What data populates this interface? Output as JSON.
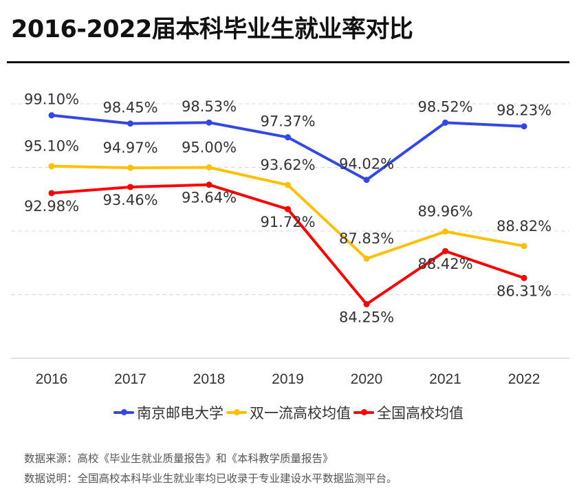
{
  "title": "2016-2022届本科毕业生就业率对比",
  "chart_data": {
    "type": "line",
    "title": "2016-2022届本科毕业生就业率对比",
    "categories": [
      "2016",
      "2017",
      "2018",
      "2019",
      "2020",
      "2021",
      "2022"
    ],
    "ylim": [
      80,
      100
    ],
    "grid": true,
    "legend_position": "bottom",
    "series": [
      {
        "name": "南京邮电大学",
        "color": "#3347e8",
        "values": [
          99.1,
          98.45,
          98.53,
          97.37,
          94.02,
          98.52,
          98.23
        ],
        "labels": [
          "99.10%",
          "98.45%",
          "98.53%",
          "97.37%",
          "94.02%",
          "98.52%",
          "98.23%"
        ]
      },
      {
        "name": "双一流高校均值",
        "color": "#ffc000",
        "values": [
          95.1,
          94.97,
          95.0,
          93.62,
          87.83,
          89.96,
          88.82
        ],
        "labels": [
          "95.10%",
          "94.97%",
          "95.00%",
          "93.62%",
          "87.83%",
          "89.96%",
          "88.82%"
        ]
      },
      {
        "name": "全国高校均值",
        "color": "#ff0000",
        "values": [
          92.98,
          93.46,
          93.64,
          91.72,
          84.25,
          88.42,
          86.31
        ],
        "labels": [
          "92.98%",
          "93.46%",
          "93.64%",
          "91.72%",
          "84.25%",
          "88.42%",
          "86.31%"
        ]
      }
    ]
  },
  "footer": {
    "source": "数据来源：高校《毕业生就业质量报告》和《本科教学质量报告》",
    "note": "数据说明：全国高校本科毕业生就业率均已收录于专业建设水平数据监测平台。"
  }
}
